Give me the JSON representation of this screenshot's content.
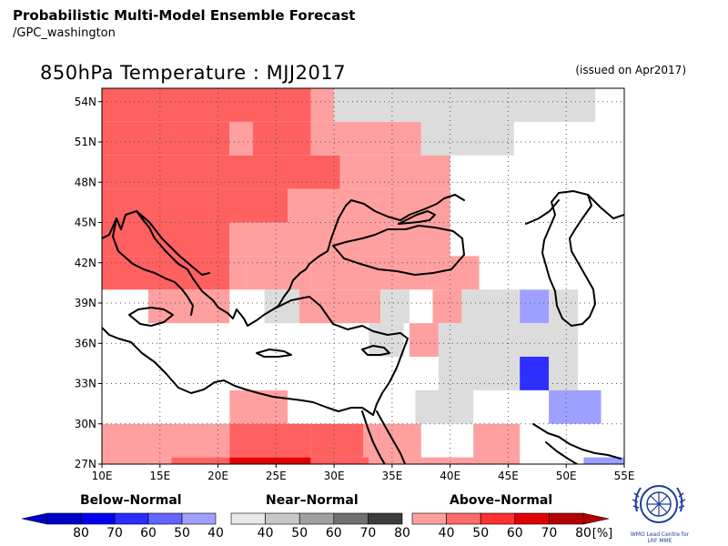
{
  "header": {
    "title": "Probabilistic Multi-Model Ensemble Forecast",
    "subtitle": "/GPC_washington"
  },
  "map": {
    "title": "850hPa Temperature : MJJ2017",
    "issued": "(issued on Apr2017)",
    "lon_range": [
      10,
      55
    ],
    "lat_range": [
      27,
      55
    ],
    "lon_ticks": [
      "10E",
      "15E",
      "20E",
      "25E",
      "30E",
      "35E",
      "40E",
      "45E",
      "50E",
      "55E"
    ],
    "lat_ticks": [
      "27N",
      "30N",
      "33N",
      "36N",
      "39N",
      "42N",
      "45N",
      "48N",
      "51N",
      "54N"
    ],
    "grid": "dotted",
    "category_colors": {
      "A40": "#ffa0a0",
      "A50": "#ff6060",
      "A60": "#ff2a2a",
      "A70": "#e00000",
      "N40": "#dcdcdc",
      "B40": "#9da0ff",
      "B50": "#2e2eff"
    }
  },
  "legend": {
    "below": {
      "label": "Below–Normal",
      "ticks": [
        "80",
        "70",
        "60",
        "50",
        "40"
      ],
      "colors": [
        "#0000c8",
        "#0000ee",
        "#2c2cff",
        "#6464ff",
        "#a0a0ff"
      ]
    },
    "near": {
      "label": "Near–Normal",
      "ticks": [
        "40",
        "50",
        "60",
        "70",
        "80"
      ],
      "colors": [
        "#e8e8e8",
        "#c8c8c8",
        "#a0a0a0",
        "#707070",
        "#3c3c3c"
      ]
    },
    "above": {
      "label": "Above–Normal",
      "ticks": [
        "40",
        "50",
        "60",
        "70",
        "80"
      ],
      "colors": [
        "#ffa0a0",
        "#ff6a6a",
        "#ff3030",
        "#e00000",
        "#b40000"
      ],
      "unit": "[%]"
    }
  },
  "logo": {
    "caption_1": "WMO Lead Centre for",
    "caption_2": "LRF MME"
  }
}
